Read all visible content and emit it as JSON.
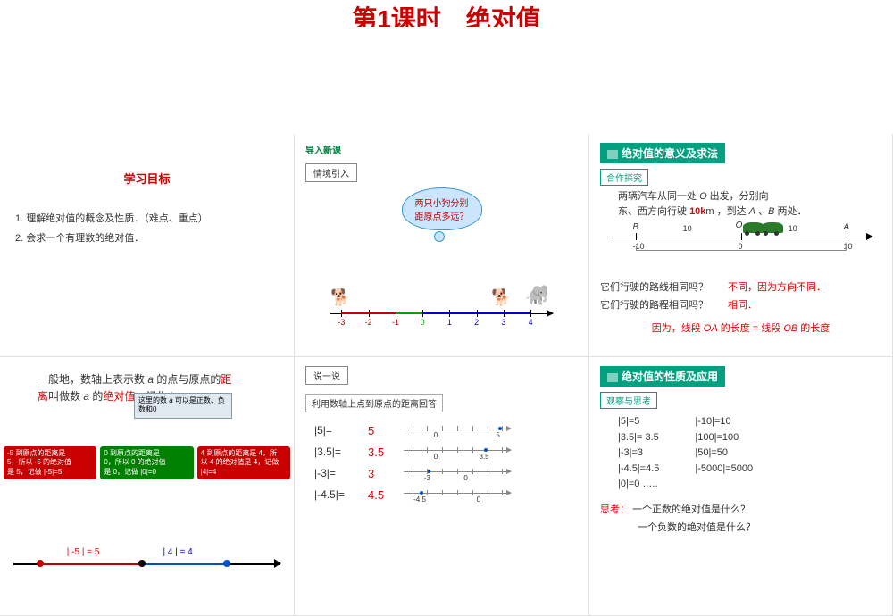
{
  "title": "第1课时　绝对值",
  "panel1": {
    "heading": "学习目标",
    "item1": "1. 理解绝对值的概念及性质．（难点、重点）",
    "item2": "2. 会求一个有理数的绝对值．"
  },
  "panel2": {
    "nav": "导入新课",
    "box": "情境引入",
    "bubble_l1": "两只小狗分别",
    "bubble_l2": "距原点多远？",
    "ticks": [
      "-3",
      "-2",
      "-1",
      "0",
      "1",
      "2",
      "3",
      "4"
    ],
    "tick_colors": [
      "#c00000",
      "#c00000",
      "#c00000",
      "#00a000",
      "#0000cc",
      "#0000cc",
      "#0000cc",
      "#0000cc"
    ]
  },
  "panel3": {
    "title": "绝对值的意义及求法",
    "box": "合作探究",
    "text_l1_a": "两辆汽车从同一处 ",
    "text_l1_o": "O",
    "text_l1_b": " 出发，分别向",
    "text_l2_a": "东、西方向行驶 ",
    "text_l2_10k": "10k",
    "text_l2_m": "m",
    "text_l2_b": " ，到达 ",
    "text_l2_A": "A",
    "text_l2_c": " 、",
    "text_l2_B": "B",
    "text_l2_d": " 两处．",
    "labels": {
      "B": "B",
      "O": "O",
      "A": "A",
      "m10": "-10",
      "p10": "10",
      "z": "0",
      "ten": "10"
    },
    "q1": "它们行驶的路线相同吗？",
    "a1": "不同，因为方向不同．",
    "q2": "它们行驶的路程相同吗？",
    "a2": "相同．",
    "reason_a": "因为，线段 ",
    "reason_oa": "OA",
    "reason_b": " 的长度  =  线段 ",
    "reason_ob": "OB",
    "reason_c": " 的长度"
  },
  "panel4": {
    "line1_a": "一般地，数轴上表示数 ",
    "line1_i": "a",
    "line1_b": " 的点与原点的",
    "line1_dist": "距",
    "line2_a": "离",
    "line2_b": "叫做数 ",
    "line2_i": "a",
    "line2_c": " 的",
    "line2_abs": "绝对值",
    "line2_d": "，记作 |",
    "note_a": "这里的数 ",
    "note_i": "a",
    "note_b": " 可以是正数、负数和0",
    "co1_l1": "-5 到原点的距离是",
    "co1_l2": "5，所以 -5 的绝对值",
    "co1_l3": "是 5，记做 |-5|=5",
    "co2_l1": "0 到原点的距离是",
    "co2_l2": "0，所以 0 的绝对值",
    "co2_l3": "是 0，记做 |0|=0",
    "co3_l1": "4 到原点的距离是 4，所",
    "co3_l2": "以 4 的绝对值是 4，记做",
    "co3_l3": "|4|=4",
    "n5": "| -5 | = 5",
    "p4": "| 4 | = 4"
  },
  "panel5": {
    "box": "说一说",
    "prompt": "利用数轴上点到原点的距离回答",
    "eqs": [
      {
        "lhs": "|5|=",
        "rhs": "5",
        "mark_pct": 88,
        "llab": "0",
        "llab_pct": 30,
        "rlab": "5",
        "rlab_pct": 88
      },
      {
        "lhs": "|3.5|=",
        "rhs": "3.5",
        "mark_pct": 75,
        "llab": "0",
        "llab_pct": 30,
        "rlab": "3.5",
        "rlab_pct": 75
      },
      {
        "lhs": "|-3|=",
        "rhs": "3",
        "mark_pct": 22,
        "llab": "-3",
        "llab_pct": 22,
        "rlab": "0",
        "rlab_pct": 58
      },
      {
        "lhs": "|-4.5|=",
        "rhs": "4.5",
        "mark_pct": 15,
        "llab": "-4.5",
        "llab_pct": 15,
        "rlab": "0",
        "rlab_pct": 70
      }
    ]
  },
  "panel6": {
    "title": "绝对值的性质及应用",
    "box": "观察与思考",
    "left": [
      "|5|=5",
      "|3.5|= 3.5",
      "|-3|=3",
      "|-4.5|=4.5",
      "|0|=0        ….."
    ],
    "right": [
      "|-10|=10",
      "|100|=100",
      "|50|=50",
      "|-5000|=5000"
    ],
    "think": "思考：",
    "q1": "一个正数的绝对值是什么？",
    "q2": "一个负数的绝对值是什么？"
  }
}
